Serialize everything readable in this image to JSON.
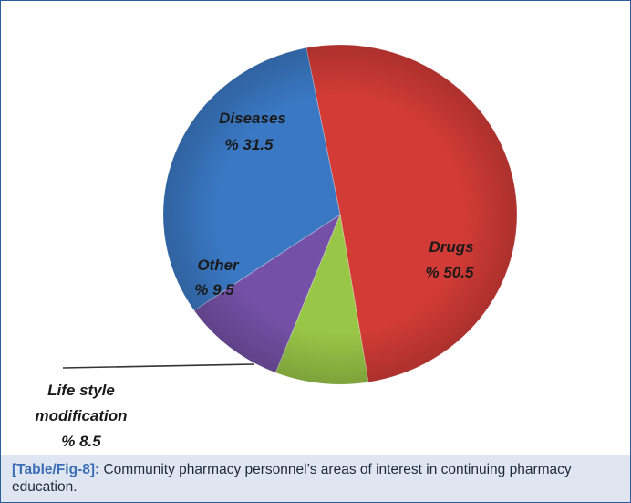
{
  "chart_data": {
    "type": "pie",
    "title": "",
    "slices": [
      {
        "category": "Drugs",
        "value": 50.5,
        "label": "% 50.5",
        "color": "#d23b36"
      },
      {
        "category": "Life style modification",
        "value": 8.5,
        "label": "% 8.5",
        "color": "#98c647"
      },
      {
        "category": "Other",
        "value": 9.5,
        "label": "% 9.5",
        "color": "#7451a6"
      },
      {
        "category": "Diseases",
        "value": 31.5,
        "label": "% 31.5",
        "color": "#3a78c3"
      }
    ]
  },
  "caption": {
    "ref": "[Table/Fig-8]:",
    "text": " Community pharmacy personnel’s areas of interest in continuing pharmacy education."
  }
}
